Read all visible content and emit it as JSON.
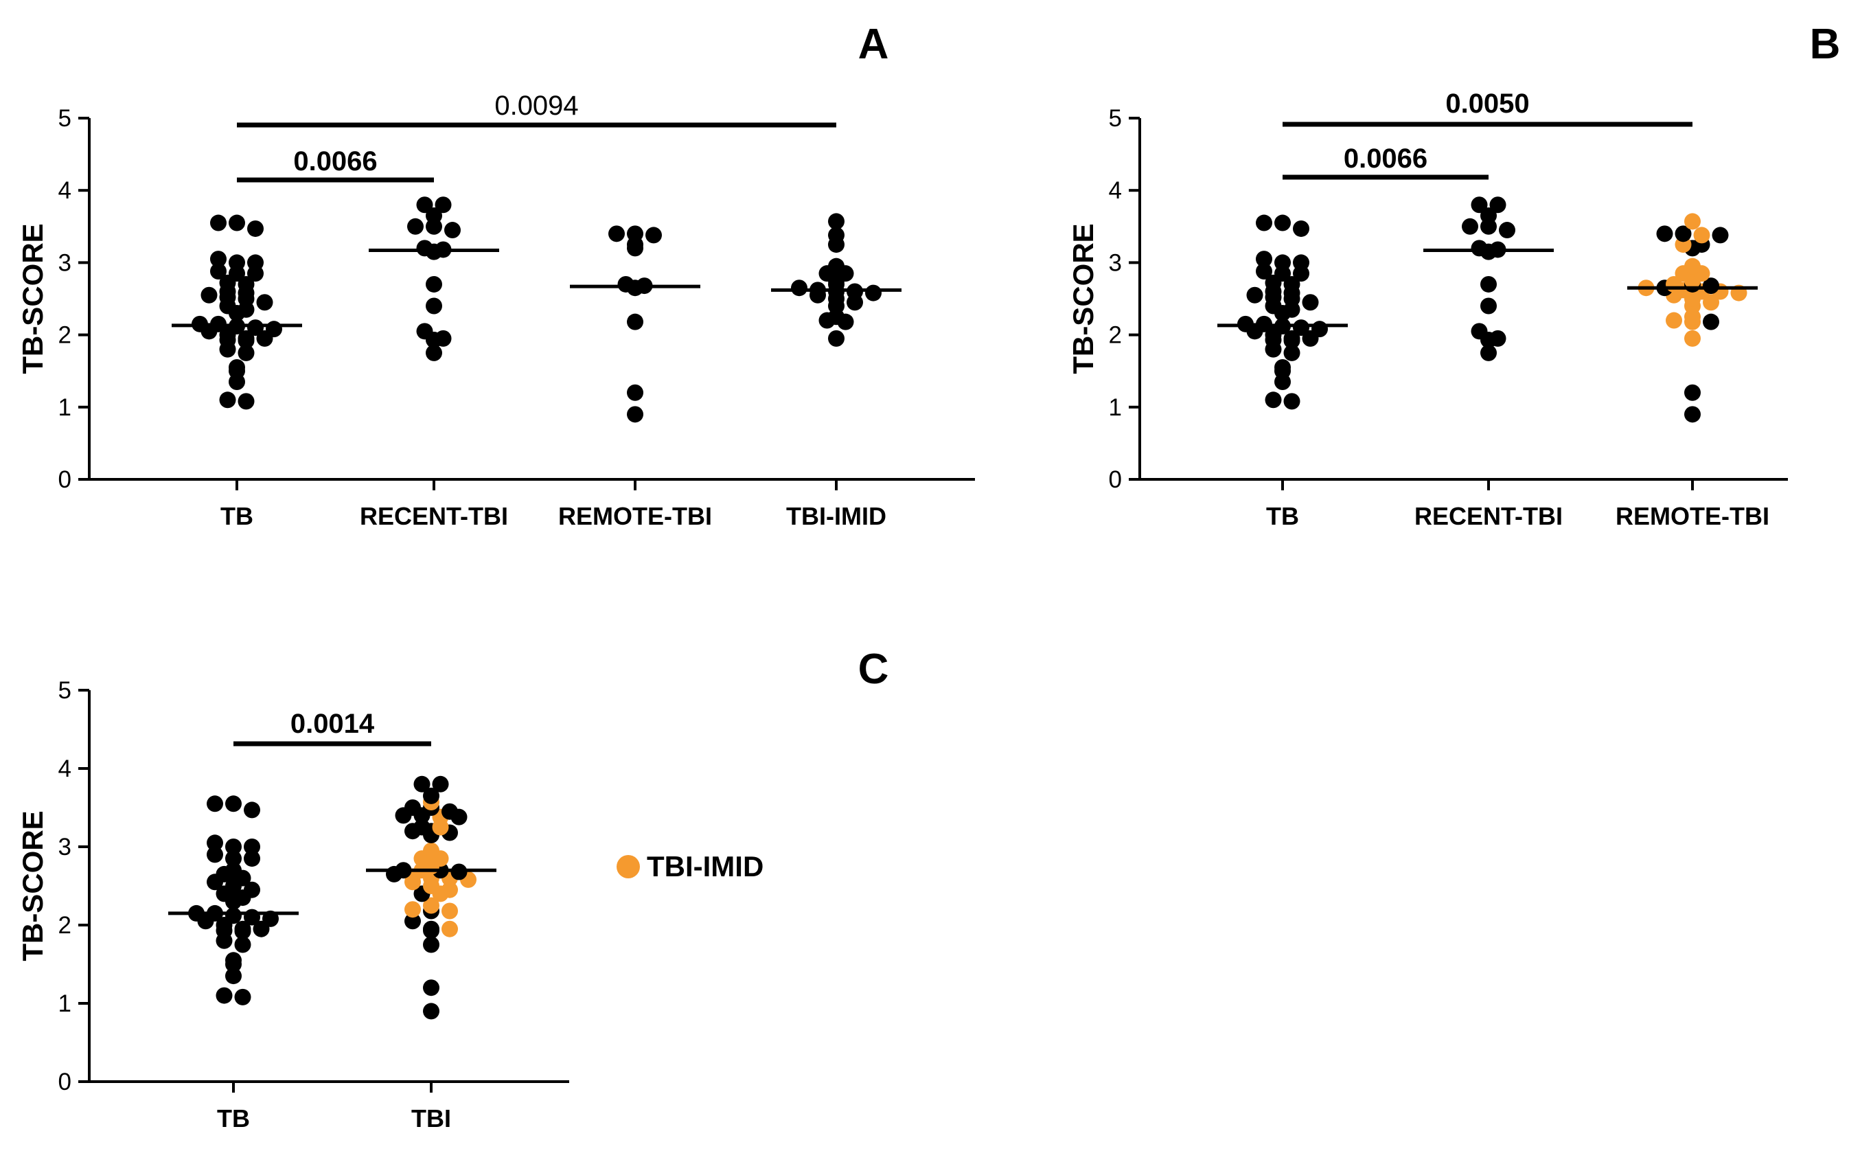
{
  "colors": {
    "ink": "#000000",
    "highlight": "#f59a2f"
  },
  "legend": {
    "label": "TBI-IMID",
    "marker": "highlight"
  },
  "chart_data": [
    {
      "panel": "A",
      "type": "scatter",
      "ylabel": "TB-SCORE",
      "ylim": [
        0,
        5
      ],
      "yticks": [
        0,
        1,
        2,
        3,
        4,
        5
      ],
      "categories": [
        "TB",
        "RECENT-TBI",
        "REMOTE-TBI",
        "TBI-IMID"
      ],
      "medians": [
        2.13,
        3.17,
        2.67,
        2.62
      ],
      "groups": [
        {
          "name": "TB",
          "values": [
            3.55,
            3.55,
            3.47,
            3.05,
            3.0,
            3.0,
            2.88,
            2.85,
            2.85,
            2.72,
            2.7,
            2.6,
            2.58,
            2.55,
            2.52,
            2.5,
            2.45,
            2.4,
            2.35,
            2.3,
            2.15,
            2.15,
            2.12,
            2.1,
            2.08,
            2.05,
            2.0,
            1.95,
            1.95,
            1.93,
            1.92,
            1.8,
            1.75,
            1.55,
            1.5,
            1.35,
            1.1,
            1.08
          ],
          "highlight": []
        },
        {
          "name": "RECENT-TBI",
          "values": [
            3.8,
            3.8,
            3.65,
            3.5,
            3.5,
            3.45,
            3.2,
            3.18,
            3.15,
            2.7,
            2.4,
            2.05,
            1.95,
            1.93,
            1.75
          ],
          "highlight": []
        },
        {
          "name": "REMOTE-TBI",
          "values": [
            3.4,
            3.4,
            3.38,
            3.25,
            3.2,
            2.7,
            2.68,
            2.65,
            2.18,
            1.2,
            0.9
          ],
          "highlight": []
        },
        {
          "name": "TBI-IMID",
          "values": [
            3.57,
            3.38,
            3.25,
            2.95,
            2.85,
            2.85,
            2.75,
            2.7,
            2.65,
            2.62,
            2.6,
            2.6,
            2.58,
            2.55,
            2.5,
            2.45,
            2.4,
            2.25,
            2.2,
            2.18,
            1.95
          ],
          "highlight": []
        }
      ],
      "comparisons": [
        {
          "from": "TB",
          "to": "RECENT-TBI",
          "p": "0.0066",
          "bold": true
        },
        {
          "from": "TB",
          "to": "TBI-IMID",
          "p": "0.0094",
          "bold": false
        }
      ]
    },
    {
      "panel": "B",
      "type": "scatter",
      "ylabel": "TB-SCORE",
      "ylim": [
        0,
        5
      ],
      "yticks": [
        0,
        1,
        2,
        3,
        4,
        5
      ],
      "categories": [
        "TB",
        "RECENT-TBI",
        "REMOTE-TBI"
      ],
      "medians": [
        2.13,
        3.17,
        2.65
      ],
      "groups": [
        {
          "name": "TB",
          "values": [
            3.55,
            3.55,
            3.47,
            3.05,
            3.0,
            3.0,
            2.88,
            2.85,
            2.85,
            2.72,
            2.7,
            2.6,
            2.58,
            2.55,
            2.52,
            2.5,
            2.45,
            2.4,
            2.35,
            2.3,
            2.15,
            2.15,
            2.12,
            2.1,
            2.08,
            2.05,
            2.0,
            1.95,
            1.95,
            1.93,
            1.92,
            1.8,
            1.75,
            1.55,
            1.5,
            1.35,
            1.1,
            1.08
          ],
          "highlight": []
        },
        {
          "name": "RECENT-TBI",
          "values": [
            3.8,
            3.8,
            3.65,
            3.5,
            3.5,
            3.45,
            3.2,
            3.18,
            3.15,
            2.7,
            2.4,
            2.05,
            1.95,
            1.93,
            1.75
          ],
          "highlight": []
        },
        {
          "name": "REMOTE-TBI",
          "values": [
            3.57,
            3.4,
            3.4,
            3.38,
            3.38,
            3.25,
            3.2,
            3.25,
            2.95,
            2.85,
            2.85,
            2.75,
            2.7,
            2.7,
            2.68,
            2.65,
            2.65,
            2.62,
            2.6,
            2.6,
            2.58,
            2.55,
            2.5,
            2.45,
            2.4,
            2.25,
            2.2,
            2.18,
            2.18,
            1.95,
            1.2,
            0.9
          ],
          "highlight": [
            0,
            3,
            5,
            8,
            9,
            10,
            11,
            12,
            15,
            17,
            18,
            19,
            20,
            21,
            22,
            23,
            24,
            25,
            26,
            27,
            29
          ]
        }
      ],
      "comparisons": [
        {
          "from": "TB",
          "to": "RECENT-TBI",
          "p": "0.0066",
          "bold": true
        },
        {
          "from": "TB",
          "to": "REMOTE-TBI",
          "p": "0.0050",
          "bold": true
        }
      ]
    },
    {
      "panel": "C",
      "type": "scatter",
      "ylabel": "TB-SCORE",
      "ylim": [
        0,
        5
      ],
      "yticks": [
        0,
        1,
        2,
        3,
        4,
        5
      ],
      "categories": [
        "TB",
        "TBI"
      ],
      "medians": [
        2.15,
        2.7
      ],
      "groups": [
        {
          "name": "TB",
          "values": [
            3.55,
            3.55,
            3.47,
            3.05,
            3.0,
            3.0,
            2.9,
            2.85,
            2.85,
            2.7,
            2.65,
            2.6,
            2.55,
            2.5,
            2.45,
            2.4,
            2.35,
            2.3,
            2.15,
            2.15,
            2.12,
            2.1,
            2.08,
            2.05,
            2.0,
            1.95,
            1.95,
            1.93,
            1.92,
            1.8,
            1.75,
            1.55,
            1.5,
            1.35,
            1.1,
            1.08
          ],
          "highlight": []
        },
        {
          "name": "TBI",
          "values": [
            3.8,
            3.8,
            3.65,
            3.57,
            3.5,
            3.5,
            3.45,
            3.4,
            3.4,
            3.38,
            3.38,
            3.25,
            3.25,
            3.2,
            3.2,
            3.18,
            3.15,
            2.95,
            2.85,
            2.85,
            2.75,
            2.7,
            2.7,
            2.7,
            2.68,
            2.65,
            2.62,
            2.6,
            2.6,
            2.58,
            2.55,
            2.5,
            2.45,
            2.4,
            2.4,
            2.25,
            2.2,
            2.18,
            2.18,
            2.05,
            1.95,
            1.95,
            1.93,
            1.75,
            1.2,
            0.9
          ],
          "highlight": [
            3,
            9,
            12,
            17,
            18,
            19,
            20,
            22,
            26,
            27,
            28,
            29,
            30,
            31,
            32,
            34,
            35,
            36,
            38,
            41
          ]
        }
      ],
      "comparisons": [
        {
          "from": "TB",
          "to": "TBI",
          "p": "0.0014",
          "bold": true
        }
      ]
    }
  ]
}
